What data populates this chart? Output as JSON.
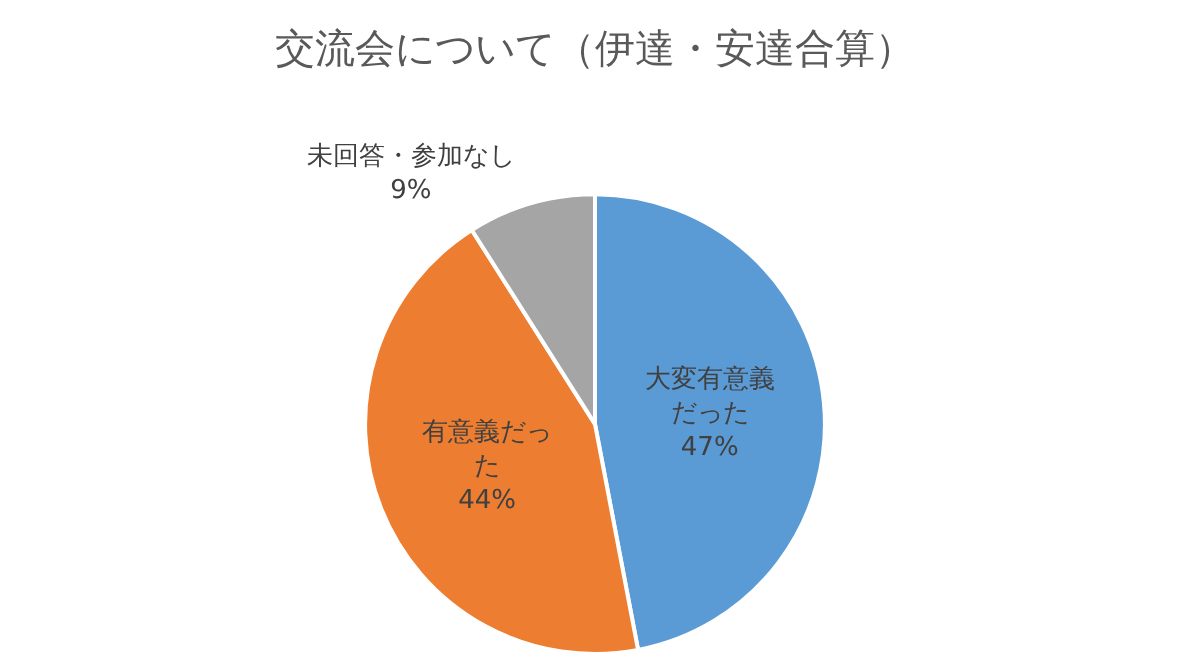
{
  "chart_data": {
    "type": "pie",
    "title": "交流会について（伊達・安達合算）",
    "categories": [
      "大変有意義だった",
      "有意義だった",
      "未回答・参加なし"
    ],
    "values": [
      47,
      44,
      9
    ],
    "colors": [
      "#5b9bd5",
      "#ed7d31",
      "#a5a5a5"
    ],
    "value_labels": [
      "47%",
      "44%",
      "9%"
    ],
    "legend": false
  }
}
